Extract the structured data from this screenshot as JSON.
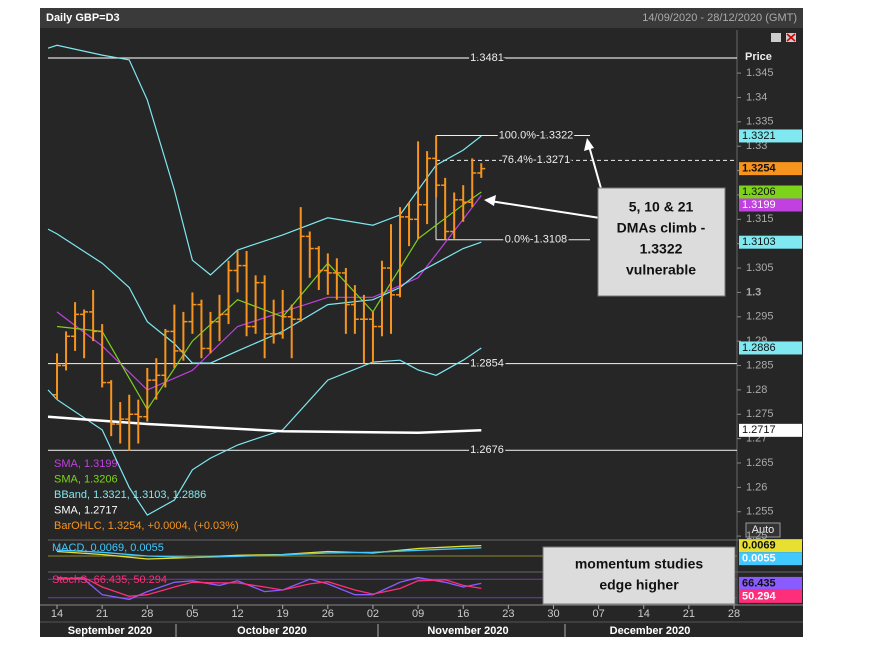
{
  "window": {
    "title": "Daily GBP=D3",
    "range": "14/09/2020 - 28/12/2020 (GMT)",
    "price_header": "Price",
    "auto_button": "Auto"
  },
  "callouts": [
    {
      "lines": [
        "5, 10 & 21",
        "DMAs climb -",
        "1.3322",
        "vulnerable"
      ]
    },
    {
      "lines": [
        "momentum studies",
        "edge higher"
      ]
    }
  ],
  "chart_data": [
    {
      "type": "ohlc",
      "color": "#f7941d",
      "legend": "BarOHLC, 1.3254, +0.0004, (+0.03%)",
      "x": [
        "2020-09-14",
        "2020-09-15",
        "2020-09-16",
        "2020-09-17",
        "2020-09-18",
        "2020-09-21",
        "2020-09-22",
        "2020-09-23",
        "2020-09-24",
        "2020-09-25",
        "2020-09-28",
        "2020-09-29",
        "2020-09-30",
        "2020-10-01",
        "2020-10-02",
        "2020-10-05",
        "2020-10-06",
        "2020-10-07",
        "2020-10-08",
        "2020-10-09",
        "2020-10-12",
        "2020-10-13",
        "2020-10-14",
        "2020-10-15",
        "2020-10-16",
        "2020-10-19",
        "2020-10-20",
        "2020-10-21",
        "2020-10-22",
        "2020-10-23",
        "2020-10-26",
        "2020-10-27",
        "2020-10-28",
        "2020-10-29",
        "2020-10-30",
        "2020-11-02",
        "2020-11-03",
        "2020-11-04",
        "2020-11-05",
        "2020-11-06",
        "2020-11-09",
        "2020-11-10",
        "2020-11-11",
        "2020-11-12",
        "2020-11-13",
        "2020-11-16",
        "2020-11-17",
        "2020-11-18"
      ],
      "open": [
        1.279,
        1.285,
        1.291,
        1.2955,
        1.296,
        1.292,
        1.2815,
        1.273,
        1.274,
        1.275,
        1.2745,
        1.282,
        1.283,
        1.292,
        1.288,
        1.294,
        1.2975,
        1.2885,
        1.294,
        1.2955,
        1.3045,
        1.3055,
        1.293,
        1.302,
        1.2915,
        1.2915,
        1.295,
        1.2945,
        1.3115,
        1.309,
        1.3045,
        1.304,
        1.304,
        1.2975,
        1.2945,
        1.2945,
        1.293,
        1.305,
        1.2995,
        1.3155,
        1.315,
        1.318,
        1.3275,
        1.322,
        1.3125,
        1.319,
        1.3185,
        1.3245
      ],
      "high": [
        1.2875,
        1.292,
        1.298,
        1.2965,
        1.3005,
        1.2935,
        1.282,
        1.2775,
        1.279,
        1.278,
        1.2845,
        1.2865,
        1.2925,
        1.2975,
        1.296,
        1.3,
        1.2985,
        1.296,
        1.2995,
        1.3065,
        1.3085,
        1.3085,
        1.3035,
        1.3035,
        1.2985,
        1.3005,
        1.2975,
        1.3175,
        1.3125,
        1.3095,
        1.308,
        1.307,
        1.305,
        1.3015,
        1.2995,
        1.296,
        1.3065,
        1.314,
        1.3175,
        1.3185,
        1.331,
        1.329,
        1.3322,
        1.3235,
        1.3205,
        1.322,
        1.3275,
        1.3265
      ],
      "low": [
        1.278,
        1.284,
        1.288,
        1.2865,
        1.29,
        1.2805,
        1.2705,
        1.269,
        1.2675,
        1.269,
        1.2735,
        1.278,
        1.2805,
        1.2845,
        1.286,
        1.2915,
        1.2865,
        1.2875,
        1.29,
        1.2935,
        1.3,
        1.291,
        1.2915,
        1.2865,
        1.2895,
        1.2905,
        1.2865,
        1.294,
        1.303,
        1.3005,
        1.2995,
        1.2985,
        1.2915,
        1.2915,
        1.2855,
        1.2855,
        1.291,
        1.2915,
        1.299,
        1.3095,
        1.311,
        1.314,
        1.3195,
        1.3108,
        1.311,
        1.3145,
        1.3175,
        1.3235
      ],
      "close": [
        1.285,
        1.291,
        1.2955,
        1.296,
        1.292,
        1.2815,
        1.273,
        1.274,
        1.275,
        1.2745,
        1.282,
        1.283,
        1.292,
        1.288,
        1.294,
        1.2975,
        1.2885,
        1.294,
        1.2955,
        1.3045,
        1.3055,
        1.293,
        1.302,
        1.2915,
        1.2915,
        1.295,
        1.2945,
        1.3115,
        1.309,
        1.3045,
        1.304,
        1.304,
        1.2975,
        1.2945,
        1.2945,
        1.293,
        1.305,
        1.2995,
        1.3155,
        1.315,
        1.318,
        1.3275,
        1.322,
        1.3125,
        1.319,
        1.3185,
        1.3245,
        1.3254
      ],
      "series": [
        {
          "legend": "SMA, 1.3199",
          "color": "#c040e0",
          "x": [
            "2020-09-14",
            "2020-09-21",
            "2020-09-28",
            "2020-10-05",
            "2020-10-12",
            "2020-10-19",
            "2020-10-26",
            "2020-11-02",
            "2020-11-09",
            "2020-11-16",
            "2020-11-18"
          ],
          "values": [
            1.296,
            1.289,
            1.28,
            1.284,
            1.293,
            1.296,
            1.299,
            1.299,
            1.303,
            1.315,
            1.3199
          ]
        },
        {
          "legend": "SMA, 1.3206",
          "color": "#7dd31a",
          "x": [
            "2020-09-14",
            "2020-09-21",
            "2020-09-28",
            "2020-10-05",
            "2020-10-12",
            "2020-10-19",
            "2020-10-26",
            "2020-11-02",
            "2020-11-09",
            "2020-11-16",
            "2020-11-18"
          ],
          "values": [
            1.293,
            1.292,
            1.276,
            1.29,
            1.2985,
            1.295,
            1.306,
            1.296,
            1.311,
            1.318,
            1.3206
          ]
        },
        {
          "legend": "BBand, 1.3321, 1.3103, 1.2886",
          "color": "#7fe8f0",
          "x": [
            "2020-09-11",
            "2020-09-14",
            "2020-09-21",
            "2020-09-24",
            "2020-09-28",
            "2020-10-01",
            "2020-10-05",
            "2020-10-07",
            "2020-10-12",
            "2020-10-19",
            "2020-10-26",
            "2020-11-02",
            "2020-11-05",
            "2020-11-09",
            "2020-11-11",
            "2020-11-16",
            "2020-11-18"
          ],
          "upper": [
            1.3501,
            1.3507,
            1.3487,
            1.3477,
            1.3395,
            1.321,
            1.3066,
            1.3036,
            1.3087,
            1.3118,
            1.3153,
            1.3138,
            1.3159,
            1.321,
            1.3261,
            1.3292,
            1.3321
          ],
          "middle": [
            1.313,
            1.312,
            1.306,
            1.301,
            1.294,
            1.2895,
            1.2855,
            1.2855,
            1.288,
            1.292,
            1.2975,
            1.2985,
            1.301,
            1.304,
            1.306,
            1.309,
            1.3103
          ],
          "lower": [
            1.28,
            1.278,
            1.2718,
            1.26,
            1.2543,
            1.2574,
            1.2636,
            1.266,
            1.2687,
            1.2718,
            1.282,
            1.2857,
            1.2861,
            1.2841,
            1.283,
            1.2861,
            1.2886
          ]
        },
        {
          "legend": "SMA, 1.2717",
          "color": "#ffffff",
          "x": [
            "2020-09-11",
            "2020-09-28",
            "2020-10-19",
            "2020-11-09",
            "2020-11-18"
          ],
          "values": [
            1.2745,
            1.273,
            1.2715,
            1.2712,
            1.2717
          ]
        }
      ],
      "levels": [
        1.3481,
        1.2854,
        1.2676
      ],
      "fib": [
        {
          "label": "100.0%-1.3322",
          "value": 1.3322
        },
        {
          "label": "76.4%-1.3271",
          "value": 1.3271
        },
        {
          "label": "0.0%-1.3108",
          "value": 1.3108
        }
      ],
      "xlim": [
        "2020-09-11",
        "2020-12-28"
      ],
      "xticks": [
        {
          "value": "2020-09-14",
          "label": "14"
        },
        {
          "value": "2020-09-21",
          "label": "21"
        },
        {
          "value": "2020-09-28",
          "label": "28"
        },
        {
          "value": "2020-10-05",
          "label": "05"
        },
        {
          "value": "2020-10-12",
          "label": "12"
        },
        {
          "value": "2020-10-19",
          "label": "19"
        },
        {
          "value": "2020-10-26",
          "label": "26"
        },
        {
          "value": "2020-11-02",
          "label": "02"
        },
        {
          "value": "2020-11-09",
          "label": "09"
        },
        {
          "value": "2020-11-16",
          "label": "16"
        },
        {
          "value": "2020-11-23",
          "label": "23"
        },
        {
          "value": "2020-11-30",
          "label": "30"
        },
        {
          "value": "2020-12-07",
          "label": "07"
        },
        {
          "value": "2020-12-14",
          "label": "14"
        },
        {
          "value": "2020-12-21",
          "label": "21"
        },
        {
          "value": "2020-12-28",
          "label": "28"
        }
      ],
      "months": [
        "September 2020",
        "October 2020",
        "November 2020",
        "December 2020"
      ],
      "ylim": [
        1.2492,
        1.3522
      ],
      "yticks": [
        1.25,
        1.255,
        1.26,
        1.265,
        1.27,
        1.275,
        1.28,
        1.285,
        1.29,
        1.295,
        1.3,
        1.305,
        1.31,
        1.315,
        1.32,
        1.325,
        1.33,
        1.335,
        1.34,
        1.345
      ]
    },
    {
      "type": "line",
      "legend": "MACD, 0.0069, 0.0055",
      "ylim": [
        -0.01,
        0.01
      ],
      "x": [
        "2020-09-14",
        "2020-09-21",
        "2020-09-28",
        "2020-10-05",
        "2020-10-12",
        "2020-10-19",
        "2020-10-26",
        "2020-11-02",
        "2020-11-09",
        "2020-11-16",
        "2020-11-18"
      ],
      "series": [
        {
          "color": "#e8e030",
          "values": [
            0.003,
            0.001,
            -0.002,
            -0.001,
            0.0005,
            0.001,
            0.003,
            0.002,
            0.005,
            0.0065,
            0.0069
          ]
        },
        {
          "color": "#40c8ff",
          "values": [
            0.004,
            0.0025,
            0.0,
            -0.001,
            -0.0002,
            0.0008,
            0.002,
            0.0025,
            0.0038,
            0.005,
            0.0055
          ]
        }
      ]
    },
    {
      "type": "line",
      "legend": "StochS, 66.435, 50.294",
      "ylim": [
        0,
        100
      ],
      "ref_lines": [
        20,
        80
      ],
      "x": [
        "2020-09-14",
        "2020-09-17",
        "2020-09-21",
        "2020-09-24",
        "2020-09-28",
        "2020-10-01",
        "2020-10-05",
        "2020-10-08",
        "2020-10-12",
        "2020-10-15",
        "2020-10-19",
        "2020-10-22",
        "2020-10-26",
        "2020-10-29",
        "2020-11-02",
        "2020-11-05",
        "2020-11-09",
        "2020-11-12",
        "2020-11-16",
        "2020-11-18"
      ],
      "series": [
        {
          "color": "#8a5cff",
          "values": [
            85,
            80,
            30,
            15,
            40,
            70,
            75,
            60,
            75,
            40,
            45,
            80,
            65,
            30,
            30,
            70,
            85,
            70,
            55,
            66.435
          ]
        },
        {
          "color": "#ff2e7a",
          "values": [
            80,
            85,
            55,
            25,
            30,
            55,
            70,
            68,
            68,
            55,
            45,
            65,
            72,
            45,
            32,
            50,
            75,
            78,
            60,
            50.294
          ]
        }
      ]
    }
  ]
}
